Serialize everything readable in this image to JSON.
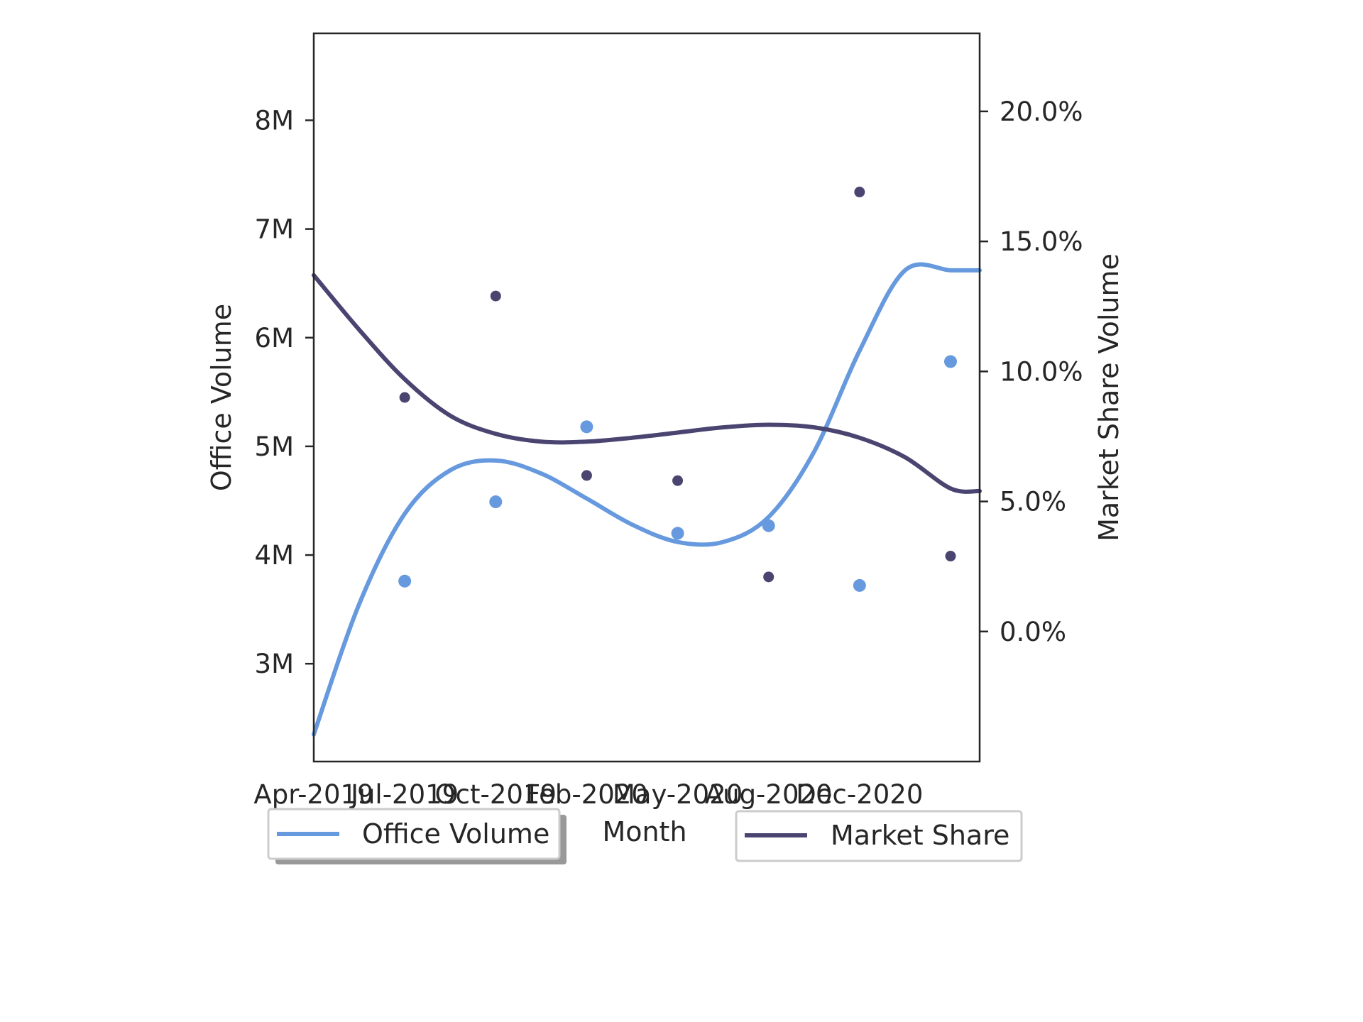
{
  "chart_data": {
    "type": "scatter",
    "xlabel": "Month",
    "ylabel_left": "Office Volume",
    "ylabel_right": "Market Share Volume",
    "x_ticks": [
      "Apr-2019",
      "Jul-2019",
      "Oct-2019",
      "Feb-2020",
      "May-2020",
      "Aug-2020",
      "Dec-2020"
    ],
    "x_points": [
      1,
      2,
      3,
      4,
      5,
      6,
      7
    ],
    "xlim": [
      0,
      7.32
    ],
    "left_axis": {
      "ylim": [
        2.1,
        8.8
      ],
      "ticks": [
        3,
        4,
        5,
        6,
        7,
        8
      ],
      "tick_labels": [
        "3M",
        "4M",
        "5M",
        "6M",
        "7M",
        "8M"
      ],
      "unit_note": "millions"
    },
    "right_axis": {
      "ylim": [
        -5,
        23
      ],
      "ticks": [
        0,
        5,
        10,
        15,
        20
      ],
      "tick_labels": [
        "0.0%",
        "5.0%",
        "10.0%",
        "15.0%",
        "20.0%"
      ]
    },
    "series": [
      {
        "name": "Office Volume",
        "axis": "left",
        "color": "#6699dd",
        "points": [
          3.76,
          4.49,
          5.18,
          4.2,
          4.27,
          3.72,
          5.78
        ],
        "fit_curve": {
          "x": [
            0,
            0.5,
            1,
            1.5,
            2,
            2.5,
            3,
            3.5,
            4,
            4.5,
            5,
            5.5,
            6,
            6.5,
            7,
            7.32
          ],
          "y": [
            2.35,
            3.55,
            4.38,
            4.78,
            4.87,
            4.75,
            4.52,
            4.28,
            4.12,
            4.12,
            4.35,
            4.95,
            5.88,
            6.62,
            6.62,
            6.62
          ]
        }
      },
      {
        "name": "Market Share",
        "axis": "right",
        "color": "#4a4470",
        "points": [
          9.0,
          12.9,
          6.0,
          5.8,
          2.1,
          16.9,
          2.9
        ],
        "fit_curve": {
          "x": [
            0,
            0.5,
            1,
            1.5,
            2,
            2.5,
            3,
            3.5,
            4,
            4.5,
            5,
            5.5,
            6,
            6.5,
            7,
            7.32
          ],
          "y": [
            13.7,
            11.6,
            9.7,
            8.3,
            7.6,
            7.3,
            7.3,
            7.45,
            7.65,
            7.85,
            7.95,
            7.85,
            7.45,
            6.7,
            5.5,
            5.4
          ]
        }
      }
    ],
    "legend": [
      {
        "label": "Office Volume",
        "color": "#6699dd",
        "placement": "bottom-left"
      },
      {
        "label": "Market Share",
        "color": "#4a4470",
        "placement": "bottom-right"
      }
    ]
  }
}
